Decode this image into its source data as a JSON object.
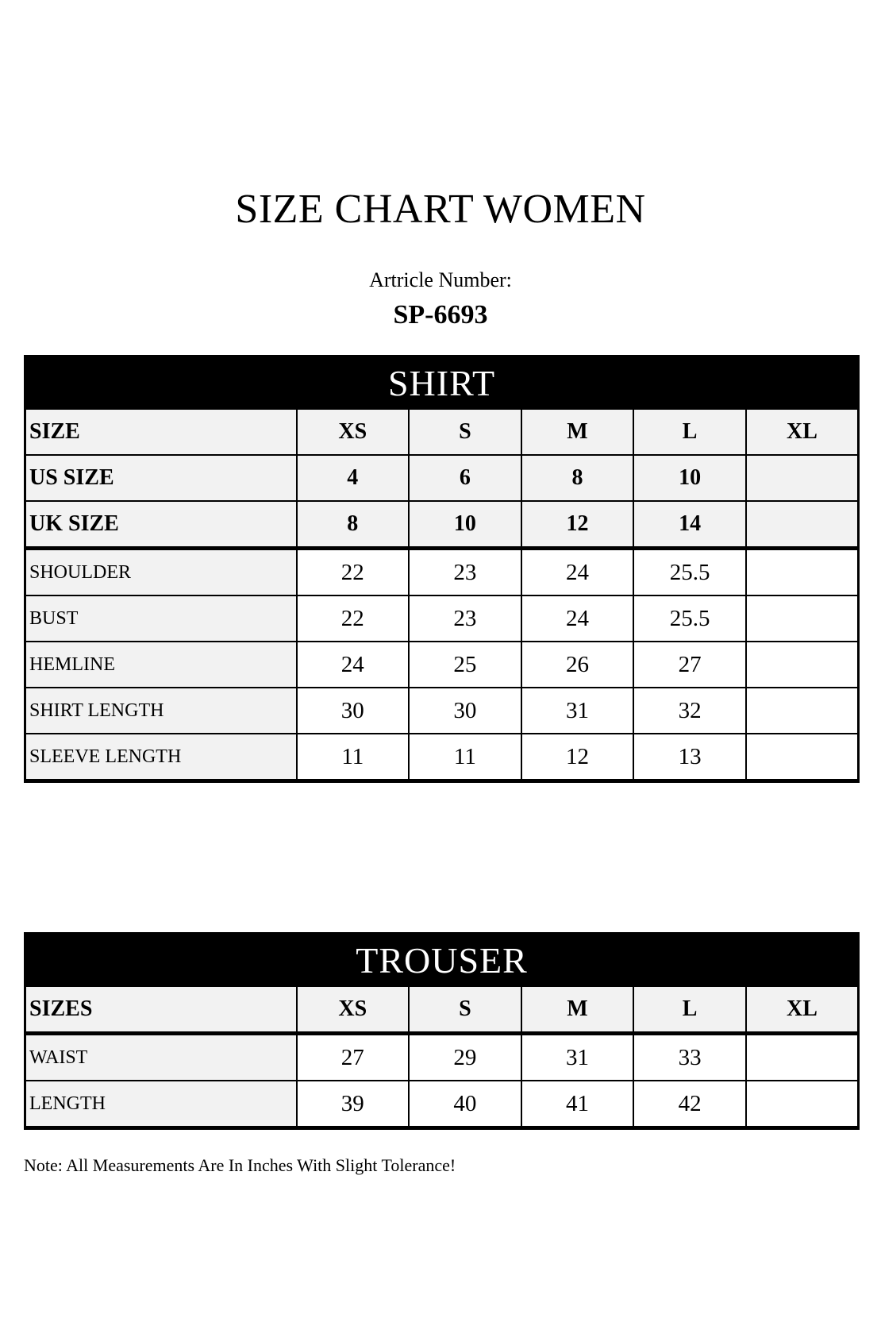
{
  "page": {
    "title": "SIZE CHART WOMEN",
    "article_label": "Artricle Number:",
    "article_number": "SP-6693",
    "note": "Note: All Measurements Are In Inches With Slight Tolerance!"
  },
  "colors": {
    "banner_bg": "#000000",
    "banner_text": "#ffffff",
    "shaded_cell": "#f2f2f2",
    "border": "#000000",
    "page_bg": "#ffffff"
  },
  "shirt_table": {
    "banner": "SHIRT",
    "rows": [
      {
        "type": "size",
        "label": "SIZE",
        "values": [
          "XS",
          "S",
          "M",
          "L",
          "XL"
        ]
      },
      {
        "type": "size",
        "label": "US SIZE",
        "values": [
          "4",
          "6",
          "8",
          "10",
          ""
        ]
      },
      {
        "type": "size",
        "label": "UK SIZE",
        "values": [
          "8",
          "10",
          "12",
          "14",
          ""
        ]
      },
      {
        "type": "measure",
        "label": "SHOULDER",
        "values": [
          "22",
          "23",
          "24",
          "25.5",
          ""
        ]
      },
      {
        "type": "measure",
        "label": "BUST",
        "values": [
          "22",
          "23",
          "24",
          "25.5",
          ""
        ]
      },
      {
        "type": "measure",
        "label": "HEMLINE",
        "values": [
          "24",
          "25",
          "26",
          "27",
          ""
        ]
      },
      {
        "type": "measure",
        "label": "SHIRT LENGTH",
        "values": [
          "30",
          "30",
          "31",
          "32",
          ""
        ]
      },
      {
        "type": "measure",
        "label": "SLEEVE LENGTH",
        "values": [
          "11",
          "11",
          "12",
          "13",
          ""
        ]
      }
    ]
  },
  "trouser_table": {
    "banner": "TROUSER",
    "rows": [
      {
        "type": "size",
        "label": "SIZES",
        "values": [
          "XS",
          "S",
          "M",
          "L",
          "XL"
        ]
      },
      {
        "type": "measure",
        "label": "WAIST",
        "values": [
          "27",
          "29",
          "31",
          "33",
          ""
        ]
      },
      {
        "type": "measure",
        "label": "LENGTH",
        "values": [
          "39",
          "40",
          "41",
          "42",
          ""
        ]
      }
    ]
  }
}
